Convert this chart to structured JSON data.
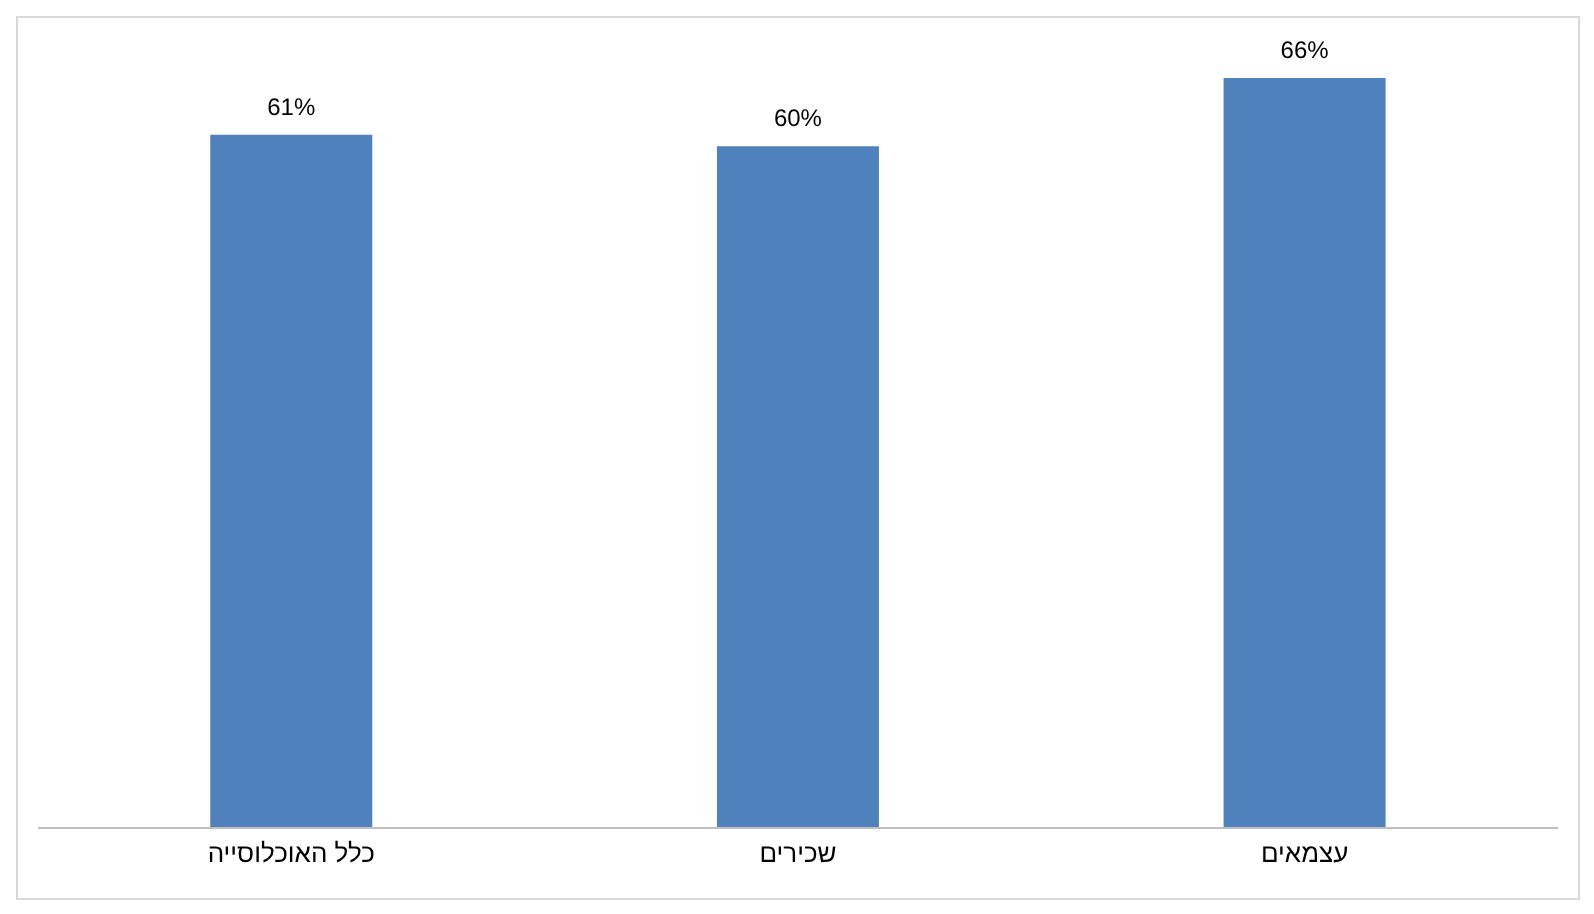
{
  "chart_data": {
    "type": "bar",
    "categories": [
      "כלל האוכלוסייה",
      "שכירים",
      "עצמאים"
    ],
    "values": [
      61,
      60,
      66
    ],
    "value_labels": [
      "61%",
      "60%",
      "66%"
    ],
    "color": "#4f81bd"
  }
}
